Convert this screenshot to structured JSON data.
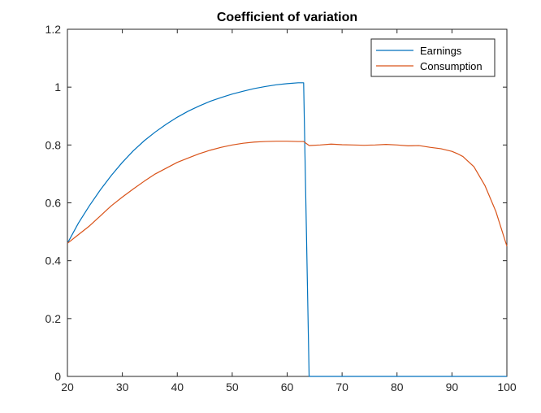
{
  "chart_data": {
    "type": "line",
    "title": "Coefficient of variation",
    "xlabel": "",
    "ylabel": "",
    "xlim": [
      20,
      100
    ],
    "ylim": [
      0,
      1.2
    ],
    "xticks": [
      20,
      30,
      40,
      50,
      60,
      70,
      80,
      90,
      100
    ],
    "yticks": [
      0,
      0.2,
      0.4,
      0.6,
      0.8,
      1,
      1.2
    ],
    "ytick_labels": [
      "0",
      "0.2",
      "0.4",
      "0.6",
      "0.8",
      "1",
      "1.2"
    ],
    "grid": false,
    "legend_position": "top-right",
    "series": [
      {
        "name": "Earnings",
        "color": "#0072BD",
        "x": [
          20,
          22,
          24,
          26,
          28,
          30,
          32,
          34,
          36,
          38,
          40,
          42,
          44,
          46,
          48,
          50,
          52,
          54,
          56,
          58,
          60,
          62,
          63,
          64,
          65,
          70,
          75,
          80,
          85,
          90,
          95,
          100
        ],
        "y": [
          0.46,
          0.53,
          0.59,
          0.645,
          0.695,
          0.74,
          0.78,
          0.815,
          0.845,
          0.872,
          0.896,
          0.917,
          0.935,
          0.951,
          0.964,
          0.976,
          0.986,
          0.995,
          1.002,
          1.008,
          1.012,
          1.015,
          1.015,
          0.0,
          0.0,
          0.0,
          0.0,
          0.0,
          0.0,
          0.0,
          0.0,
          0.0
        ]
      },
      {
        "name": "Consumption",
        "color": "#D95319",
        "x": [
          20,
          22,
          24,
          26,
          28,
          30,
          32,
          34,
          36,
          38,
          40,
          42,
          44,
          46,
          48,
          50,
          52,
          54,
          56,
          58,
          60,
          62,
          63,
          64,
          66,
          68,
          70,
          72,
          74,
          76,
          78,
          80,
          82,
          84,
          86,
          88,
          90,
          91,
          92,
          94,
          96,
          98,
          100
        ],
        "y": [
          0.46,
          0.49,
          0.52,
          0.555,
          0.59,
          0.62,
          0.648,
          0.675,
          0.7,
          0.72,
          0.74,
          0.755,
          0.77,
          0.782,
          0.792,
          0.8,
          0.806,
          0.81,
          0.812,
          0.813,
          0.813,
          0.812,
          0.812,
          0.798,
          0.8,
          0.803,
          0.801,
          0.8,
          0.799,
          0.8,
          0.802,
          0.8,
          0.797,
          0.798,
          0.792,
          0.787,
          0.778,
          0.77,
          0.76,
          0.725,
          0.66,
          0.57,
          0.45
        ]
      }
    ]
  }
}
